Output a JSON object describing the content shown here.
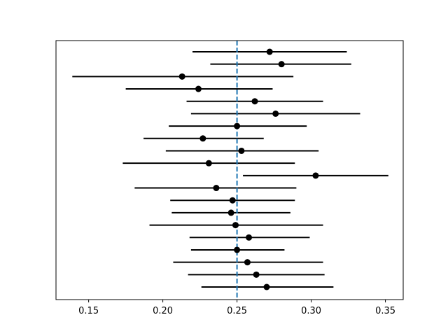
{
  "chart_data": {
    "type": "scatter",
    "subtype": "forest-plot-errorbars",
    "title": "",
    "xlabel": "",
    "ylabel": "",
    "xlim": [
      0.128,
      0.362
    ],
    "x_ticks": [
      0.15,
      0.2,
      0.25,
      0.3,
      0.35
    ],
    "x_tick_labels": [
      "0.15",
      "0.20",
      "0.25",
      "0.30",
      "0.35"
    ],
    "y_axis_visible": false,
    "grid": false,
    "legend": "none",
    "reference_line": {
      "x": 0.25,
      "style": "dashed",
      "color": "#1f77b4"
    },
    "point_color": "#000000",
    "points": [
      {
        "x": 0.272,
        "lower": 0.22,
        "upper": 0.324
      },
      {
        "x": 0.28,
        "lower": 0.232,
        "upper": 0.327
      },
      {
        "x": 0.213,
        "lower": 0.139,
        "upper": 0.288
      },
      {
        "x": 0.224,
        "lower": 0.175,
        "upper": 0.274
      },
      {
        "x": 0.262,
        "lower": 0.216,
        "upper": 0.308
      },
      {
        "x": 0.276,
        "lower": 0.219,
        "upper": 0.333
      },
      {
        "x": 0.25,
        "lower": 0.204,
        "upper": 0.297
      },
      {
        "x": 0.227,
        "lower": 0.187,
        "upper": 0.268
      },
      {
        "x": 0.253,
        "lower": 0.202,
        "upper": 0.305
      },
      {
        "x": 0.231,
        "lower": 0.173,
        "upper": 0.289
      },
      {
        "x": 0.303,
        "lower": 0.254,
        "upper": 0.352
      },
      {
        "x": 0.236,
        "lower": 0.181,
        "upper": 0.29
      },
      {
        "x": 0.247,
        "lower": 0.205,
        "upper": 0.289
      },
      {
        "x": 0.246,
        "lower": 0.206,
        "upper": 0.286
      },
      {
        "x": 0.249,
        "lower": 0.191,
        "upper": 0.308
      },
      {
        "x": 0.258,
        "lower": 0.218,
        "upper": 0.299
      },
      {
        "x": 0.25,
        "lower": 0.219,
        "upper": 0.282
      },
      {
        "x": 0.257,
        "lower": 0.207,
        "upper": 0.308
      },
      {
        "x": 0.263,
        "lower": 0.217,
        "upper": 0.309
      },
      {
        "x": 0.27,
        "lower": 0.226,
        "upper": 0.315
      }
    ]
  }
}
